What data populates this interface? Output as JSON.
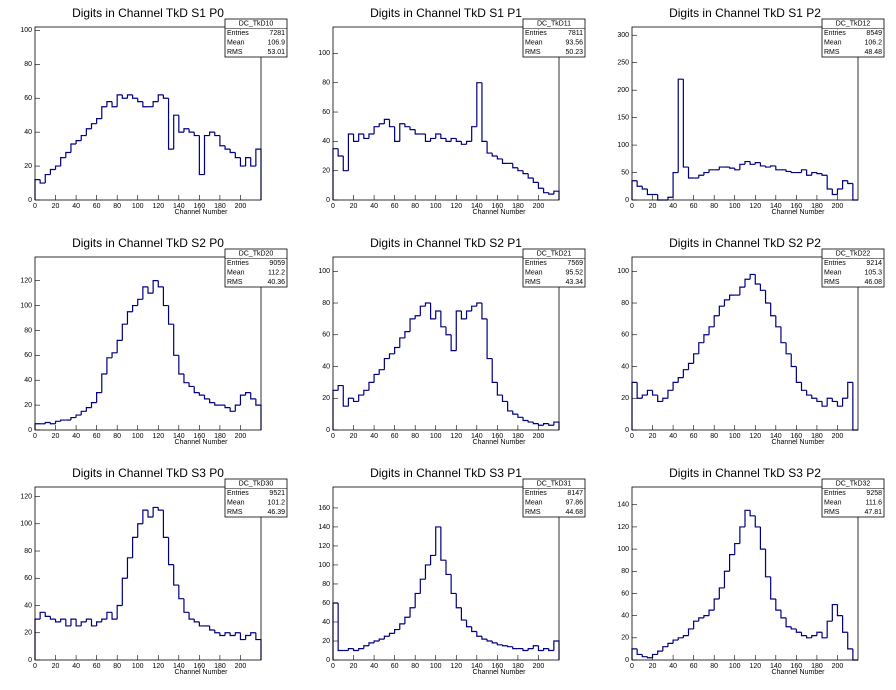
{
  "chart_data": [
    {
      "type": "histogram",
      "title": "Digits in Channel TkD S1 P0",
      "x_label": "Channel Number",
      "color": "#000080",
      "stats_title": "DC_TkD10",
      "stats": [
        {
          "label": "Entries",
          "value": 7281
        },
        {
          "label": "Mean",
          "value": 106.9
        },
        {
          "label": "RMS",
          "value": 53.01
        }
      ],
      "bins": [
        0,
        5,
        10,
        15,
        20,
        25,
        30,
        35,
        40,
        45,
        50,
        55,
        60,
        65,
        70,
        75,
        80,
        85,
        90,
        95,
        100,
        105,
        110,
        115,
        120,
        125,
        130,
        135,
        140,
        145,
        150,
        155,
        160,
        165,
        170,
        175,
        180,
        185,
        190,
        195,
        200,
        205,
        210,
        215,
        220
      ],
      "values": [
        12,
        10,
        15,
        18,
        20,
        25,
        28,
        33,
        35,
        38,
        42,
        45,
        48,
        55,
        58,
        55,
        62,
        60,
        62,
        60,
        58,
        55,
        55,
        58,
        62,
        60,
        30,
        50,
        40,
        42,
        40,
        38,
        15,
        38,
        40,
        38,
        32,
        30,
        28,
        25,
        20,
        25,
        20,
        30
      ],
      "xlim": [
        0,
        220
      ],
      "xticks": [
        0,
        20,
        40,
        60,
        80,
        100,
        120,
        140,
        160,
        180,
        200
      ],
      "ylim": [
        0,
        102
      ],
      "yticks": [
        0,
        20,
        40,
        60,
        80,
        100
      ]
    },
    {
      "type": "histogram",
      "title": "Digits in Channel TkD S1 P1",
      "x_label": "Channel Number",
      "color": "#000080",
      "stats_title": "DC_TkD11",
      "stats": [
        {
          "label": "Entries",
          "value": 7811
        },
        {
          "label": "Mean",
          "value": 93.56
        },
        {
          "label": "RMS",
          "value": 50.23
        }
      ],
      "bins": [
        0,
        5,
        10,
        15,
        20,
        25,
        30,
        35,
        40,
        45,
        50,
        55,
        60,
        65,
        70,
        75,
        80,
        85,
        90,
        95,
        100,
        105,
        110,
        115,
        120,
        125,
        130,
        135,
        140,
        145,
        150,
        155,
        160,
        165,
        170,
        175,
        180,
        185,
        190,
        195,
        200,
        205,
        210,
        215,
        220
      ],
      "values": [
        35,
        30,
        20,
        45,
        40,
        45,
        42,
        45,
        50,
        52,
        55,
        50,
        40,
        52,
        50,
        48,
        45,
        45,
        40,
        42,
        45,
        42,
        40,
        42,
        40,
        38,
        40,
        50,
        80,
        40,
        32,
        30,
        28,
        25,
        25,
        22,
        20,
        18,
        15,
        12,
        8,
        5,
        4,
        6
      ],
      "xlim": [
        0,
        220
      ],
      "xticks": [
        0,
        20,
        40,
        60,
        80,
        100,
        120,
        140,
        160,
        180,
        200
      ],
      "ylim": [
        0,
        118
      ],
      "yticks": [
        0,
        20,
        40,
        60,
        80,
        100
      ]
    },
    {
      "type": "histogram",
      "title": "Digits in Channel TkD S1 P2",
      "x_label": "Channel Number",
      "color": "#000080",
      "stats_title": "DC_TkD12",
      "stats": [
        {
          "label": "Entries",
          "value": 8549
        },
        {
          "label": "Mean",
          "value": 106.2
        },
        {
          "label": "RMS",
          "value": 48.48
        }
      ],
      "bins": [
        0,
        5,
        10,
        15,
        20,
        25,
        30,
        35,
        40,
        45,
        50,
        55,
        60,
        65,
        70,
        75,
        80,
        85,
        90,
        95,
        100,
        105,
        110,
        115,
        120,
        125,
        130,
        135,
        140,
        145,
        150,
        155,
        160,
        165,
        170,
        175,
        180,
        185,
        190,
        195,
        200,
        205,
        210,
        215,
        220
      ],
      "values": [
        35,
        25,
        20,
        10,
        10,
        0,
        0,
        5,
        50,
        220,
        60,
        40,
        40,
        45,
        50,
        55,
        55,
        60,
        60,
        58,
        55,
        65,
        70,
        65,
        68,
        62,
        60,
        62,
        55,
        55,
        52,
        50,
        50,
        55,
        45,
        50,
        48,
        45,
        20,
        10,
        20,
        35,
        30,
        0
      ],
      "xlim": [
        0,
        220
      ],
      "xticks": [
        0,
        20,
        40,
        60,
        80,
        100,
        120,
        140,
        160,
        180,
        200
      ],
      "ylim": [
        0,
        315
      ],
      "yticks": [
        0,
        50,
        100,
        150,
        200,
        250,
        300
      ]
    },
    {
      "type": "histogram",
      "title": "Digits in Channel TkD S2 P0",
      "x_label": "Channel Number",
      "color": "#000080",
      "stats_title": "DC_TkD20",
      "stats": [
        {
          "label": "Entries",
          "value": 9059
        },
        {
          "label": "Mean",
          "value": 112.2
        },
        {
          "label": "RMS",
          "value": 40.36
        }
      ],
      "bins": [
        0,
        5,
        10,
        15,
        20,
        25,
        30,
        35,
        40,
        45,
        50,
        55,
        60,
        65,
        70,
        75,
        80,
        85,
        90,
        95,
        100,
        105,
        110,
        115,
        120,
        125,
        130,
        135,
        140,
        145,
        150,
        155,
        160,
        165,
        170,
        175,
        180,
        185,
        190,
        195,
        200,
        205,
        210,
        215,
        220
      ],
      "values": [
        5,
        5,
        6,
        5,
        7,
        8,
        8,
        10,
        12,
        15,
        18,
        22,
        30,
        45,
        58,
        62,
        72,
        85,
        95,
        100,
        105,
        115,
        110,
        120,
        115,
        100,
        85,
        60,
        45,
        38,
        35,
        30,
        28,
        25,
        22,
        20,
        20,
        18,
        15,
        20,
        28,
        30,
        25,
        20
      ],
      "xlim": [
        0,
        220
      ],
      "xticks": [
        0,
        20,
        40,
        60,
        80,
        100,
        120,
        140,
        160,
        180,
        200
      ],
      "ylim": [
        0,
        139
      ],
      "yticks": [
        0,
        20,
        40,
        60,
        80,
        100,
        120
      ]
    },
    {
      "type": "histogram",
      "title": "Digits in Channel TkD S2 P1",
      "x_label": "Channel Number",
      "color": "#000080",
      "stats_title": "DC_TkD21",
      "stats": [
        {
          "label": "Entries",
          "value": 7569
        },
        {
          "label": "Mean",
          "value": 95.52
        },
        {
          "label": "RMS",
          "value": 43.34
        }
      ],
      "bins": [
        0,
        5,
        10,
        15,
        20,
        25,
        30,
        35,
        40,
        45,
        50,
        55,
        60,
        65,
        70,
        75,
        80,
        85,
        90,
        95,
        100,
        105,
        110,
        115,
        120,
        125,
        130,
        135,
        140,
        145,
        150,
        155,
        160,
        165,
        170,
        175,
        180,
        185,
        190,
        195,
        200,
        205,
        210,
        215,
        220
      ],
      "values": [
        25,
        28,
        15,
        20,
        18,
        22,
        25,
        30,
        35,
        38,
        45,
        48,
        52,
        58,
        62,
        70,
        72,
        78,
        80,
        70,
        75,
        65,
        60,
        50,
        75,
        70,
        75,
        78,
        80,
        70,
        45,
        30,
        22,
        18,
        12,
        10,
        8,
        6,
        5,
        4,
        3,
        4,
        3,
        5
      ],
      "xlim": [
        0,
        220
      ],
      "xticks": [
        0,
        20,
        40,
        60,
        80,
        100,
        120,
        140,
        160,
        180,
        200
      ],
      "ylim": [
        0,
        109
      ],
      "yticks": [
        0,
        20,
        40,
        60,
        80,
        100
      ]
    },
    {
      "type": "histogram",
      "title": "Digits in Channel TkD S2 P2",
      "x_label": "Channel Number",
      "color": "#000080",
      "stats_title": "DC_TkD22",
      "stats": [
        {
          "label": "Entries",
          "value": 9214
        },
        {
          "label": "Mean",
          "value": 105.3
        },
        {
          "label": "RMS",
          "value": 46.08
        }
      ],
      "bins": [
        0,
        5,
        10,
        15,
        20,
        25,
        30,
        35,
        40,
        45,
        50,
        55,
        60,
        65,
        70,
        75,
        80,
        85,
        90,
        95,
        100,
        105,
        110,
        115,
        120,
        125,
        130,
        135,
        140,
        145,
        150,
        155,
        160,
        165,
        170,
        175,
        180,
        185,
        190,
        195,
        200,
        205,
        210,
        215,
        220
      ],
      "values": [
        30,
        20,
        22,
        25,
        22,
        18,
        20,
        25,
        30,
        33,
        38,
        42,
        48,
        55,
        60,
        65,
        72,
        78,
        82,
        85,
        85,
        90,
        95,
        98,
        92,
        88,
        80,
        72,
        65,
        55,
        48,
        40,
        30,
        25,
        22,
        20,
        18,
        15,
        20,
        18,
        15,
        20,
        30,
        0
      ],
      "xlim": [
        0,
        220
      ],
      "xticks": [
        0,
        20,
        40,
        60,
        80,
        100,
        120,
        140,
        160,
        180,
        200
      ],
      "ylim": [
        0,
        109
      ],
      "yticks": [
        0,
        20,
        40,
        60,
        80,
        100
      ]
    },
    {
      "type": "histogram",
      "title": "Digits in Channel TkD S3 P0",
      "x_label": "Channel Number",
      "color": "#000080",
      "stats_title": "DC_TkD30",
      "stats": [
        {
          "label": "Entries",
          "value": 9521
        },
        {
          "label": "Mean",
          "value": 101.2
        },
        {
          "label": "RMS",
          "value": 46.39
        }
      ],
      "bins": [
        0,
        5,
        10,
        15,
        20,
        25,
        30,
        35,
        40,
        45,
        50,
        55,
        60,
        65,
        70,
        75,
        80,
        85,
        90,
        95,
        100,
        105,
        110,
        115,
        120,
        125,
        130,
        135,
        140,
        145,
        150,
        155,
        160,
        165,
        170,
        175,
        180,
        185,
        190,
        195,
        200,
        205,
        210,
        215,
        220
      ],
      "values": [
        30,
        35,
        32,
        30,
        28,
        30,
        25,
        30,
        25,
        28,
        30,
        25,
        28,
        30,
        35,
        30,
        40,
        60,
        75,
        90,
        100,
        110,
        105,
        112,
        110,
        90,
        70,
        55,
        45,
        35,
        30,
        28,
        25,
        25,
        22,
        20,
        18,
        20,
        18,
        20,
        15,
        18,
        20,
        15
      ],
      "xlim": [
        0,
        220
      ],
      "xticks": [
        0,
        20,
        40,
        60,
        80,
        100,
        120,
        140,
        160,
        180,
        200
      ],
      "ylim": [
        0,
        127
      ],
      "yticks": [
        0,
        20,
        40,
        60,
        80,
        100,
        120
      ]
    },
    {
      "type": "histogram",
      "title": "Digits in Channel TkD S3 P1",
      "x_label": "Channel Number",
      "color": "#000080",
      "stats_title": "DC_TkD31",
      "stats": [
        {
          "label": "Entries",
          "value": 8147
        },
        {
          "label": "Mean",
          "value": 97.86
        },
        {
          "label": "RMS",
          "value": 44.68
        }
      ],
      "bins": [
        0,
        5,
        10,
        15,
        20,
        25,
        30,
        35,
        40,
        45,
        50,
        55,
        60,
        65,
        70,
        75,
        80,
        85,
        90,
        95,
        100,
        105,
        110,
        115,
        120,
        125,
        130,
        135,
        140,
        145,
        150,
        155,
        160,
        165,
        170,
        175,
        180,
        185,
        190,
        195,
        200,
        205,
        210,
        215,
        220
      ],
      "values": [
        60,
        10,
        10,
        12,
        10,
        12,
        15,
        18,
        20,
        22,
        25,
        28,
        32,
        38,
        45,
        55,
        70,
        85,
        100,
        110,
        140,
        105,
        90,
        70,
        55,
        42,
        35,
        30,
        25,
        22,
        20,
        18,
        16,
        15,
        14,
        12,
        12,
        10,
        12,
        15,
        10,
        12,
        10,
        20
      ],
      "xlim": [
        0,
        220
      ],
      "xticks": [
        0,
        20,
        40,
        60,
        80,
        100,
        120,
        140,
        160,
        180,
        200
      ],
      "ylim": [
        0,
        182
      ],
      "yticks": [
        0,
        20,
        40,
        60,
        80,
        100,
        120,
        140,
        160
      ]
    },
    {
      "type": "histogram",
      "title": "Digits in Channel TkD S3 P2",
      "x_label": "Channel Number",
      "color": "#000080",
      "stats_title": "DC_TkD32",
      "stats": [
        {
          "label": "Entries",
          "value": 9258
        },
        {
          "label": "Mean",
          "value": 111.6
        },
        {
          "label": "RMS",
          "value": 47.81
        }
      ],
      "bins": [
        0,
        5,
        10,
        15,
        20,
        25,
        30,
        35,
        40,
        45,
        50,
        55,
        60,
        65,
        70,
        75,
        80,
        85,
        90,
        95,
        100,
        105,
        110,
        115,
        120,
        125,
        130,
        135,
        140,
        145,
        150,
        155,
        160,
        165,
        170,
        175,
        180,
        185,
        190,
        195,
        200,
        205,
        210,
        215,
        220
      ],
      "values": [
        10,
        5,
        3,
        2,
        5,
        8,
        12,
        15,
        18,
        20,
        22,
        28,
        35,
        38,
        40,
        45,
        55,
        65,
        80,
        95,
        105,
        120,
        135,
        130,
        120,
        100,
        75,
        55,
        45,
        38,
        30,
        28,
        25,
        22,
        20,
        22,
        25,
        20,
        35,
        50,
        40,
        25,
        10,
        0
      ],
      "xlim": [
        0,
        220
      ],
      "xticks": [
        0,
        20,
        40,
        60,
        80,
        100,
        120,
        140,
        160,
        180,
        200
      ],
      "ylim": [
        0,
        156
      ],
      "yticks": [
        0,
        20,
        40,
        60,
        80,
        100,
        120,
        140
      ]
    }
  ]
}
